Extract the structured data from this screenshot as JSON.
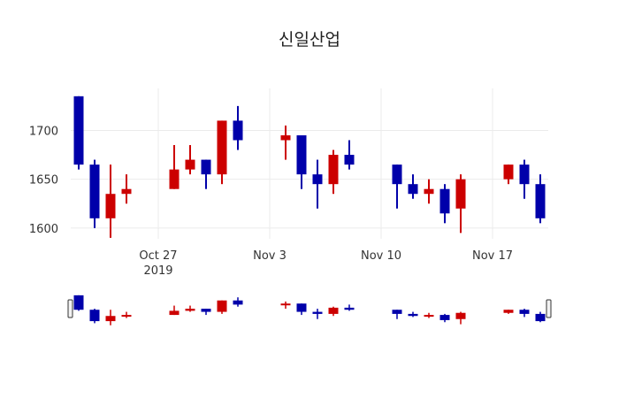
{
  "chart_data": {
    "type": "candlestick",
    "title": "신일산업",
    "xlabel": "",
    "ylabel": "",
    "increasing_color": "#cc0000",
    "decreasing_color": "#0000aa",
    "x_range": [
      "2019-10-21T12:00",
      "2019-11-20T12:00"
    ],
    "ylim": [
      1589,
      1743
    ],
    "y_ticks": [
      1600,
      1650,
      1700
    ],
    "x_ticks": [
      {
        "date": "2019-10-27",
        "label": "Oct 27",
        "sublabel": "2019"
      },
      {
        "date": "2019-11-03",
        "label": "Nov 3"
      },
      {
        "date": "2019-11-10",
        "label": "Nov 10"
      },
      {
        "date": "2019-11-17",
        "label": "Nov 17"
      }
    ],
    "grid": true,
    "rangeslider": true,
    "candles": [
      {
        "date": "2019-10-22",
        "open": 1735,
        "high": 1735,
        "low": 1660,
        "close": 1665
      },
      {
        "date": "2019-10-23",
        "open": 1665,
        "high": 1670,
        "low": 1600,
        "close": 1610
      },
      {
        "date": "2019-10-24",
        "open": 1610,
        "high": 1665,
        "low": 1590,
        "close": 1635
      },
      {
        "date": "2019-10-25",
        "open": 1635,
        "high": 1655,
        "low": 1625,
        "close": 1640
      },
      {
        "date": "2019-10-28",
        "open": 1640,
        "high": 1685,
        "low": 1640,
        "close": 1660
      },
      {
        "date": "2019-10-29",
        "open": 1660,
        "high": 1685,
        "low": 1655,
        "close": 1670
      },
      {
        "date": "2019-10-30",
        "open": 1670,
        "high": 1670,
        "low": 1640,
        "close": 1655
      },
      {
        "date": "2019-10-31",
        "open": 1655,
        "high": 1710,
        "low": 1645,
        "close": 1710
      },
      {
        "date": "2019-11-01",
        "open": 1710,
        "high": 1725,
        "low": 1680,
        "close": 1690
      },
      {
        "date": "2019-11-04",
        "open": 1690,
        "high": 1705,
        "low": 1670,
        "close": 1695
      },
      {
        "date": "2019-11-05",
        "open": 1695,
        "high": 1695,
        "low": 1640,
        "close": 1655
      },
      {
        "date": "2019-11-06",
        "open": 1655,
        "high": 1670,
        "low": 1620,
        "close": 1645
      },
      {
        "date": "2019-11-07",
        "open": 1645,
        "high": 1680,
        "low": 1635,
        "close": 1675
      },
      {
        "date": "2019-11-08",
        "open": 1675,
        "high": 1690,
        "low": 1660,
        "close": 1665
      },
      {
        "date": "2019-11-11",
        "open": 1665,
        "high": 1665,
        "low": 1620,
        "close": 1645
      },
      {
        "date": "2019-11-12",
        "open": 1645,
        "high": 1655,
        "low": 1630,
        "close": 1635
      },
      {
        "date": "2019-11-13",
        "open": 1635,
        "high": 1650,
        "low": 1625,
        "close": 1640
      },
      {
        "date": "2019-11-14",
        "open": 1640,
        "high": 1645,
        "low": 1605,
        "close": 1615
      },
      {
        "date": "2019-11-15",
        "open": 1620,
        "high": 1655,
        "low": 1595,
        "close": 1650
      },
      {
        "date": "2019-11-18",
        "open": 1650,
        "high": 1665,
        "low": 1645,
        "close": 1665
      },
      {
        "date": "2019-11-19",
        "open": 1665,
        "high": 1670,
        "low": 1630,
        "close": 1645
      },
      {
        "date": "2019-11-20",
        "open": 1645,
        "high": 1655,
        "low": 1605,
        "close": 1610
      }
    ]
  }
}
